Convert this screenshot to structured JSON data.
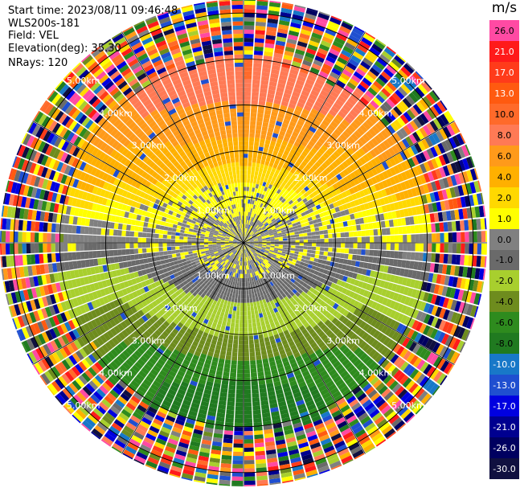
{
  "info": {
    "start_time": "Start time: 2023/08/11 09:46:48",
    "instrument": "WLS200s-181",
    "field": "Field: VEL",
    "elevation": "Elevation(deg): 35.30",
    "nrays": "NRays: 120"
  },
  "colorbar": {
    "unit": "m/s",
    "ticks": [
      "26.0",
      "21.0",
      "17.0",
      "13.0",
      "10.0",
      "8.0",
      "6.0",
      "4.0",
      "2.0",
      "1.0",
      "0.0",
      "-1.0",
      "-2.0",
      "-4.0",
      "-6.0",
      "-8.0",
      "-10.0",
      "-13.0",
      "-17.0",
      "-21.0",
      "-26.0",
      "-30.0"
    ],
    "segment_colors": [
      "#ff4aa3",
      "#ff1a1a",
      "#ff3b1a",
      "#ff5a10",
      "#ff6a2a",
      "#ff7a55",
      "#ff9a1a",
      "#ffb000",
      "#ffd800",
      "#ffff00",
      "#808080",
      "#6a6a6a",
      "#a8cf2e",
      "#6e8c1e",
      "#2e8b1e",
      "#207a20",
      "#1878c8",
      "#1f4fd0",
      "#0000e0",
      "#000090",
      "#000060",
      "#101040"
    ]
  },
  "chart_data": {
    "type": "heatmap",
    "projection": "polar PPI",
    "field": "VEL",
    "units": "m/s",
    "elevation_deg": 35.3,
    "n_rays": 120,
    "range_rings_km": [
      1.0,
      2.0,
      3.0,
      4.0,
      5.0
    ],
    "range_ring_labels": [
      "1.00km",
      "2.00km",
      "3.00km",
      "4.00km",
      "5.00km"
    ],
    "azimuth_spokes_deg": [
      0,
      30,
      60,
      90,
      120,
      150,
      180,
      210,
      240,
      270,
      300,
      330
    ],
    "color_scale_levels_ms": [
      26.0,
      21.0,
      17.0,
      13.0,
      10.0,
      8.0,
      6.0,
      4.0,
      2.0,
      1.0,
      0.0,
      -1.0,
      -2.0,
      -4.0,
      -6.0,
      -8.0,
      -10.0,
      -13.0,
      -17.0,
      -21.0,
      -26.0,
      -30.0
    ],
    "approx_velocity_by_range_north_half_ms": [
      [
        0.5,
        0.0
      ],
      [
        1.0,
        0.5
      ],
      [
        1.5,
        1.5
      ],
      [
        2.0,
        3.0
      ],
      [
        2.5,
        5.0
      ],
      [
        3.0,
        6.0
      ],
      [
        3.5,
        8.0
      ]
    ],
    "approx_velocity_by_range_south_half_ms": [
      [
        0.5,
        -0.5
      ],
      [
        1.0,
        -1.5
      ],
      [
        1.5,
        -2.5
      ],
      [
        2.0,
        -4.0
      ],
      [
        2.5,
        -6.0
      ],
      [
        3.0,
        -8.0
      ],
      [
        3.5,
        -9.0
      ]
    ],
    "noise_beyond_km": 3.9
  }
}
